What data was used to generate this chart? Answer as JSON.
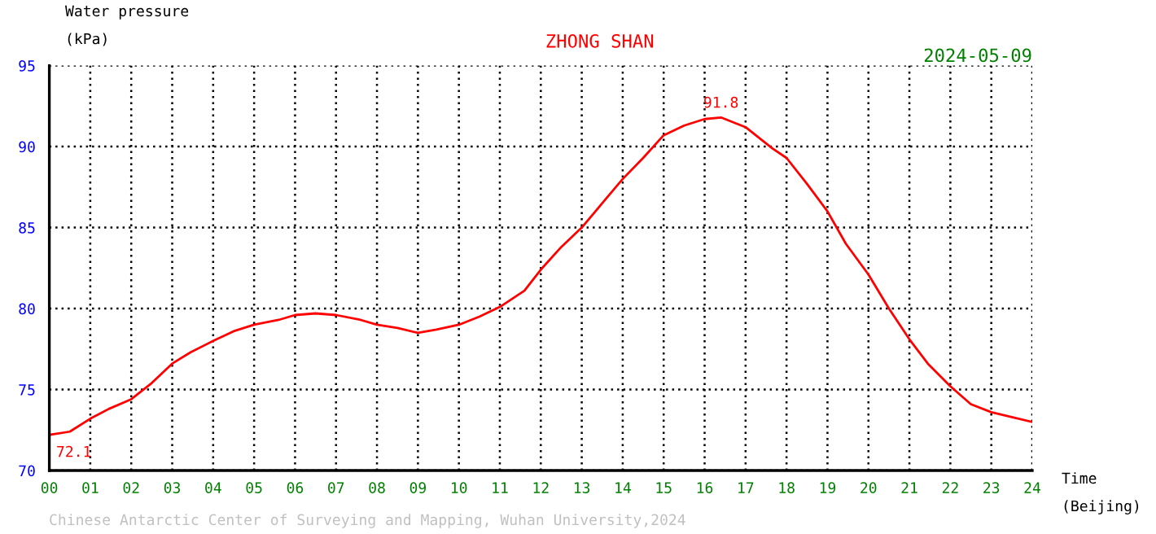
{
  "chart_data": {
    "type": "line",
    "title": "ZHONG SHAN",
    "subtitle": "2024-05-09",
    "xlabel": "Time\n(Beijing)",
    "ylabel": "Water pressure\n(kPa)",
    "x": [
      0,
      0.5,
      1,
      1.45,
      2,
      2.5,
      3,
      3.45,
      4,
      4.5,
      5,
      5.6,
      6,
      6.5,
      7,
      7.6,
      8,
      8.5,
      9,
      9.45,
      10,
      10.5,
      11,
      11.6,
      12,
      12.5,
      13,
      13.5,
      14,
      14.5,
      15,
      15.5,
      16,
      16.4,
      17,
      17.65,
      18,
      18.5,
      19,
      19.45,
      20,
      20.5,
      21,
      21.45,
      22,
      22.5,
      23,
      23.5,
      24
    ],
    "series": [
      {
        "color": "#ff0000",
        "values": [
          72.2,
          72.4,
          73.2,
          73.8,
          74.4,
          75.4,
          76.6,
          77.3,
          78.0,
          78.6,
          79.0,
          79.3,
          79.6,
          79.7,
          79.6,
          79.3,
          79.0,
          78.8,
          78.5,
          78.7,
          79.0,
          79.5,
          80.1,
          81.1,
          82.4,
          83.8,
          85.0,
          86.5,
          88.0,
          89.3,
          90.7,
          91.3,
          91.7,
          91.8,
          91.2,
          89.9,
          89.3,
          87.7,
          86.0,
          84.0,
          82.1,
          80.0,
          78.1,
          76.6,
          75.2,
          74.1,
          73.6,
          73.3,
          73.0
        ]
      }
    ],
    "annotations": [
      {
        "text": "72.1",
        "x": 0,
        "y": 72.1
      },
      {
        "text": "91.8",
        "x": 16.4,
        "y": 91.8
      },
      "Chinese Antarctic Center of Surveying and Mapping, Wuhan University,2024"
    ],
    "xlim": [
      0,
      24
    ],
    "ylim": [
      70,
      95
    ],
    "xticks": [
      {
        "value": 0,
        "label": "00"
      },
      {
        "value": 1,
        "label": "01"
      },
      {
        "value": 2,
        "label": "02"
      },
      {
        "value": 3,
        "label": "03"
      },
      {
        "value": 4,
        "label": "04"
      },
      {
        "value": 5,
        "label": "05"
      },
      {
        "value": 6,
        "label": "06"
      },
      {
        "value": 7,
        "label": "07"
      },
      {
        "value": 8,
        "label": "08"
      },
      {
        "value": 9,
        "label": "09"
      },
      10,
      11,
      12,
      13,
      14,
      15,
      16,
      17,
      18,
      19,
      20,
      21,
      22,
      23,
      24
    ],
    "yticks": [
      70,
      75,
      80,
      85,
      90,
      95
    ],
    "grid": true,
    "line_style": "solid",
    "marker": "none"
  }
}
